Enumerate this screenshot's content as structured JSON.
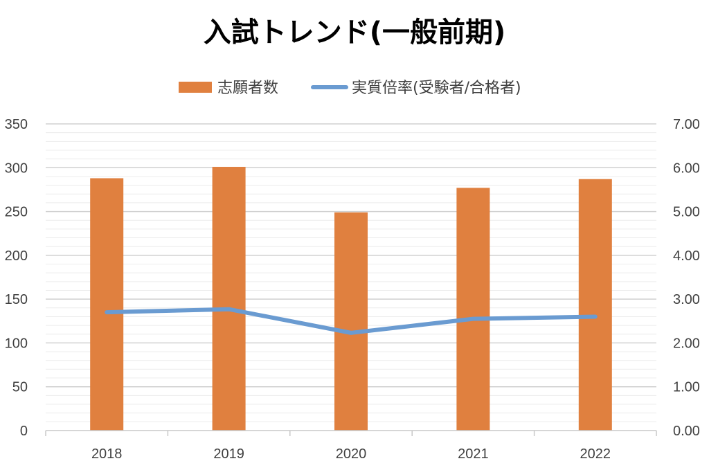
{
  "chart_data": {
    "type": "bar",
    "title": "入試トレンド(一般前期)",
    "categories": [
      "2018",
      "2019",
      "2020",
      "2021",
      "2022"
    ],
    "series": [
      {
        "name": "志願者数",
        "type": "bar",
        "axis": "left",
        "color": "#E0803F",
        "values": [
          288,
          301,
          249,
          277,
          287
        ]
      },
      {
        "name": "実質倍率(受験者/合格者)",
        "type": "line",
        "axis": "right",
        "color": "#6A9BD1",
        "values": [
          2.7,
          2.77,
          2.23,
          2.55,
          2.6
        ]
      }
    ],
    "y_left": {
      "min": 0,
      "max": 350,
      "step": 50,
      "ticks": [
        "0",
        "50",
        "100",
        "150",
        "200",
        "250",
        "300",
        "350"
      ]
    },
    "y_right": {
      "min": 0,
      "max": 7,
      "step": 1,
      "ticks": [
        "0.00",
        "1.00",
        "2.00",
        "3.00",
        "4.00",
        "5.00",
        "6.00",
        "7.00"
      ]
    },
    "grid": true,
    "legend_position": "top"
  }
}
